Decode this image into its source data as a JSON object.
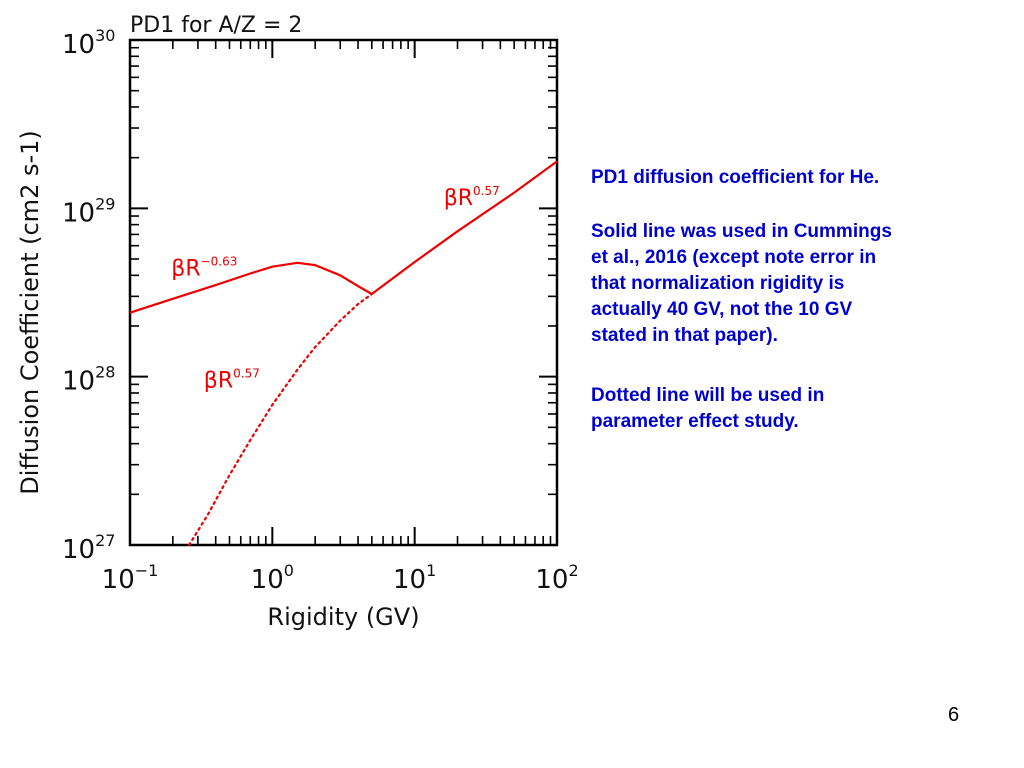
{
  "chart_data": {
    "type": "line",
    "title": "PD1 for A/Z = 2",
    "xlabel": "Rigidity (GV)",
    "ylabel": "Diffusion Coefficient (cm2 s-1)",
    "x_scale": "log",
    "y_scale": "log",
    "xlim": [
      0.1,
      100
    ],
    "ylim": [
      1e+27,
      1e+30
    ],
    "x_ticks": [
      {
        "base": "10",
        "exp": "−1"
      },
      {
        "base": "10",
        "exp": "0"
      },
      {
        "base": "10",
        "exp": "1"
      },
      {
        "base": "10",
        "exp": "2"
      }
    ],
    "y_ticks": [
      {
        "base": "10",
        "exp": "27"
      },
      {
        "base": "10",
        "exp": "28"
      },
      {
        "base": "10",
        "exp": "29"
      },
      {
        "base": "10",
        "exp": "30"
      }
    ],
    "line_color": "#ee0000",
    "series": [
      {
        "name": "solid",
        "style": "solid",
        "x": [
          0.1,
          0.2,
          0.4,
          0.7,
          1.0,
          1.5,
          2.0,
          3.0,
          4.0,
          5.0,
          10,
          20,
          50,
          100
        ],
        "y": [
          2.4e+28,
          2.9e+28,
          3.5e+28,
          4.1e+28,
          4.5e+28,
          4.75e+28,
          4.6e+28,
          4e+28,
          3.45e+28,
          3.1e+28,
          4.8e+28,
          7.3e+28,
          1.24e+29,
          1.9e+29
        ]
      },
      {
        "name": "dotted",
        "style": "dotted",
        "x": [
          0.26,
          0.35,
          0.5,
          0.7,
          1.0,
          1.5,
          2.0,
          3.0,
          4.0,
          5.0
        ],
        "y": [
          1e+27,
          1.5e+27,
          2.6e+27,
          4.2e+27,
          6.8e+27,
          1.1e+28,
          1.5e+28,
          2.15e+28,
          2.7e+28,
          3.1e+28
        ]
      }
    ],
    "annotations": [
      {
        "id": "neg",
        "text": "βR",
        "sup": "−0.63",
        "x": 0.195,
        "y": 4e+28
      },
      {
        "id": "high",
        "text": "βR",
        "sup": "0.57",
        "x": 16,
        "y": 1.05e+29
      },
      {
        "id": "low",
        "text": "βR",
        "sup": "0.57",
        "x": 0.33,
        "y": 8.6e+27
      }
    ]
  },
  "notes": {
    "title": "PD1 diffusion coefficient for He.",
    "para1_lines": [
      "Solid line was used in Cummings",
      "et al., 2016 (except note error in",
      "that normalization rigidity is",
      "actually 40 GV, not the 10 GV",
      "stated in that paper)."
    ],
    "para2_lines": [
      "Dotted line will be used in",
      "parameter effect study."
    ]
  },
  "slide_number": "6"
}
